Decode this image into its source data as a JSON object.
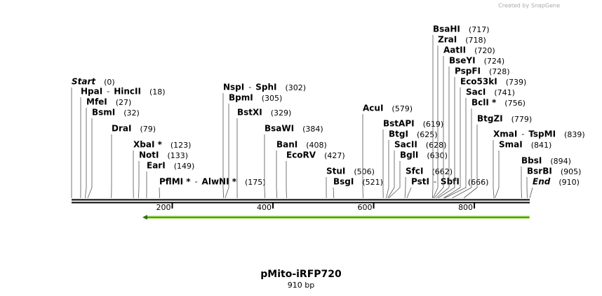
{
  "map": {
    "credit": "Created by SnapGene",
    "title": "pMito-iRFP720",
    "length": 910,
    "length_label": "910 bp",
    "separator": "-",
    "scale_ticks": [
      200,
      400,
      600,
      800
    ],
    "sites": [
      {
        "names": [
          "Start"
        ],
        "position": 0,
        "position_label": "(0)",
        "style": "italic"
      },
      {
        "names": [
          "HpaI",
          "HincII"
        ],
        "position": 18,
        "position_label": "(18)"
      },
      {
        "names": [
          "MfeI"
        ],
        "position": 27,
        "position_label": "(27)"
      },
      {
        "names": [
          "BsmI"
        ],
        "position": 32,
        "position_label": "(32)"
      },
      {
        "names": [
          "DraI"
        ],
        "position": 79,
        "position_label": "(79)"
      },
      {
        "names": [
          "XbaI *"
        ],
        "position": 123,
        "position_label": "(123)"
      },
      {
        "names": [
          "NotI"
        ],
        "position": 133,
        "position_label": "(133)"
      },
      {
        "names": [
          "EarI"
        ],
        "position": 149,
        "position_label": "(149)"
      },
      {
        "names": [
          "PflMI *",
          "AlwNI *"
        ],
        "position": 175,
        "position_label": "(175)"
      },
      {
        "names": [
          "NspI",
          "SphI"
        ],
        "position": 302,
        "position_label": "(302)"
      },
      {
        "names": [
          "BpmI"
        ],
        "position": 305,
        "position_label": "(305)"
      },
      {
        "names": [
          "BstXI"
        ],
        "position": 329,
        "position_label": "(329)"
      },
      {
        "names": [
          "BsaWI"
        ],
        "position": 384,
        "position_label": "(384)"
      },
      {
        "names": [
          "BanI"
        ],
        "position": 408,
        "position_label": "(408)"
      },
      {
        "names": [
          "EcoRV"
        ],
        "position": 427,
        "position_label": "(427)"
      },
      {
        "names": [
          "StuI"
        ],
        "position": 506,
        "position_label": "(506)"
      },
      {
        "names": [
          "BsgI"
        ],
        "position": 521,
        "position_label": "(521)"
      },
      {
        "names": [
          "AcuI"
        ],
        "position": 579,
        "position_label": "(579)"
      },
      {
        "names": [
          "BstAPI"
        ],
        "position": 619,
        "position_label": "(619)"
      },
      {
        "names": [
          "BtgI"
        ],
        "position": 625,
        "position_label": "(625)"
      },
      {
        "names": [
          "SacII"
        ],
        "position": 628,
        "position_label": "(628)"
      },
      {
        "names": [
          "BglI"
        ],
        "position": 630,
        "position_label": "(630)"
      },
      {
        "names": [
          "SfcI"
        ],
        "position": 662,
        "position_label": "(662)"
      },
      {
        "names": [
          "PstI",
          "SbfI"
        ],
        "position": 666,
        "position_label": "(666)"
      },
      {
        "names": [
          "BsaHI"
        ],
        "position": 717,
        "position_label": "(717)"
      },
      {
        "names": [
          "ZraI"
        ],
        "position": 718,
        "position_label": "(718)"
      },
      {
        "names": [
          "AatII"
        ],
        "position": 720,
        "position_label": "(720)"
      },
      {
        "names": [
          "BseYI"
        ],
        "position": 724,
        "position_label": "(724)"
      },
      {
        "names": [
          "PspFI"
        ],
        "position": 728,
        "position_label": "(728)"
      },
      {
        "names": [
          "Eco53kI"
        ],
        "position": 739,
        "position_label": "(739)"
      },
      {
        "names": [
          "SacI"
        ],
        "position": 741,
        "position_label": "(741)"
      },
      {
        "names": [
          "BclI *"
        ],
        "position": 756,
        "position_label": "(756)"
      },
      {
        "names": [
          "BtgZI"
        ],
        "position": 779,
        "position_label": "(779)"
      },
      {
        "names": [
          "XmaI",
          "TspMI"
        ],
        "position": 839,
        "position_label": "(839)"
      },
      {
        "names": [
          "SmaI"
        ],
        "position": 841,
        "position_label": "(841)"
      },
      {
        "names": [
          "BbsI"
        ],
        "position": 894,
        "position_label": "(894)"
      },
      {
        "names": [
          "BsrBI"
        ],
        "position": 905,
        "position_label": "(905)"
      },
      {
        "names": [
          "End"
        ],
        "position": 910,
        "position_label": "(910)",
        "style": "italic"
      }
    ]
  }
}
